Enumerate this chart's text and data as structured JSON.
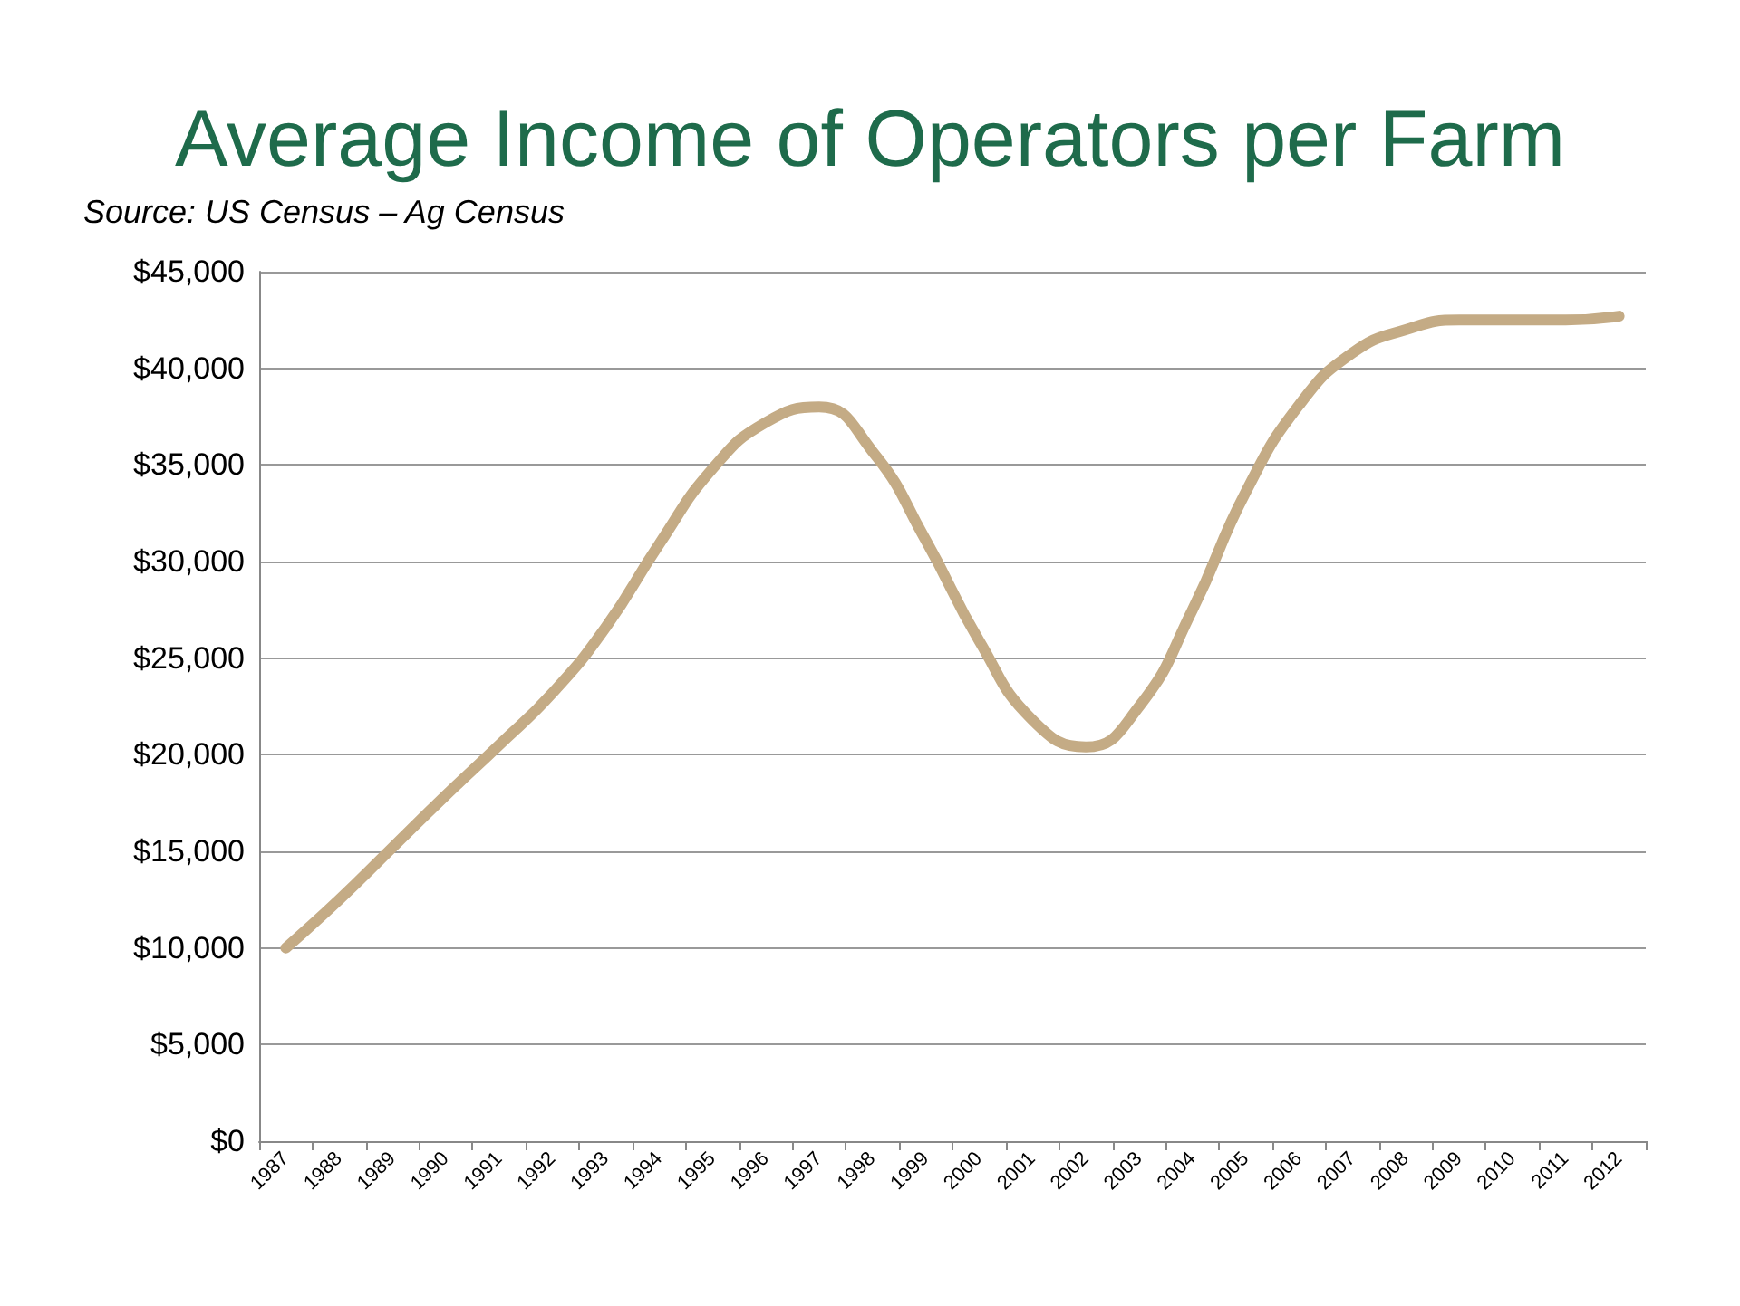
{
  "chart_data": {
    "type": "line",
    "title": "Average Income of Operators per Farm",
    "annotations": [
      "Source: US Census – Ag Census"
    ],
    "categories": [
      "1987",
      "1988",
      "1989",
      "1990",
      "1991",
      "1992",
      "1993",
      "1994",
      "1995",
      "1996",
      "1997",
      "1998",
      "1999",
      "2000",
      "2001",
      "2002",
      "2003",
      "2004",
      "2005",
      "2006",
      "2007",
      "2008",
      "2009",
      "2010",
      "2011",
      "2012"
    ],
    "series": [
      {
        "color": "#c4ab85",
        "values": [
          10000,
          12500,
          15200,
          17900,
          20500,
          23200,
          26600,
          30900,
          34800,
          37200,
          38000,
          35700,
          31100,
          25900,
          21800,
          20400,
          22500,
          27500,
          33600,
          38100,
          40800,
          42000,
          42500,
          42500,
          42500,
          42700
        ]
      }
    ],
    "ylim": [
      0,
      45000
    ],
    "yticks": [
      {
        "value": 0,
        "label": "$0"
      },
      {
        "value": 5000,
        "label": "$5,000"
      },
      {
        "value": 10000,
        "label": "$10,000"
      },
      {
        "value": 15000,
        "label": "$15,000"
      },
      {
        "value": 20000,
        "label": "$20,000"
      },
      {
        "value": 25000,
        "label": "$25,000"
      },
      {
        "value": 30000,
        "label": "$30,000"
      },
      {
        "value": 35000,
        "label": "$35,000"
      },
      {
        "value": 40000,
        "label": "$40,000"
      },
      {
        "value": 45000,
        "label": "$45,000"
      }
    ],
    "grid": "y",
    "marker": "none",
    "line_style": "solid"
  }
}
